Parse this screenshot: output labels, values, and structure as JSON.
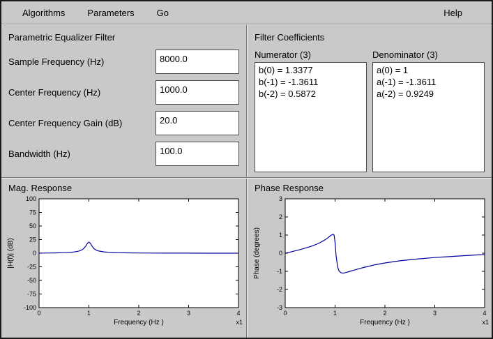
{
  "menu": {
    "items": [
      {
        "label": "Algorithms"
      },
      {
        "label": "Parameters"
      },
      {
        "label": "Go"
      },
      {
        "label": "Help"
      }
    ]
  },
  "filter_panel": {
    "title": "Parametric Equalizer Filter",
    "fields": [
      {
        "label": "Sample Frequency (Hz)",
        "value": "8000.0"
      },
      {
        "label": "Center Frequency (Hz)",
        "value": "1000.0"
      },
      {
        "label": "Center Frequency Gain (dB)",
        "value": "20.0"
      },
      {
        "label": "Bandwidth (Hz)",
        "value": "100.0"
      }
    ]
  },
  "coefficients_panel": {
    "title": "Filter Coefficients",
    "numerator": {
      "header": "Numerator (3)",
      "lines": [
        "b(0) = 1.3377",
        "b(-1) = -1.3611",
        "b(-2) = 0.5872"
      ]
    },
    "denominator": {
      "header": "Denominator (3)",
      "lines": [
        "a(0) = 1",
        "a(-1) = -1.3611",
        "a(-2) = 0.9249"
      ]
    }
  },
  "chart_data": [
    {
      "type": "line",
      "panel_title": "Mag. Response",
      "xlabel": "Frequency (Hz )",
      "ylabel": "|H(f)| (dB)",
      "x_multiplier": "x1",
      "xlim": [
        0,
        4
      ],
      "ylim": [
        -100,
        100
      ],
      "xticks": [
        0,
        1,
        2,
        3,
        4
      ],
      "yticks": [
        -100,
        -75,
        -50,
        -25,
        0,
        25,
        50,
        75,
        100
      ],
      "grid": false,
      "legend": false,
      "line_color": "#00009c",
      "x": [
        0,
        0.1,
        0.2,
        0.3,
        0.4,
        0.5,
        0.6,
        0.65,
        0.7,
        0.75,
        0.8,
        0.85,
        0.88,
        0.91,
        0.94,
        0.96,
        0.98,
        1.0,
        1.02,
        1.04,
        1.07,
        1.1,
        1.15,
        1.2,
        1.3,
        1.4,
        1.5,
        1.6,
        1.8,
        2.0,
        2.3,
        2.6,
        3.0,
        3.4,
        3.8,
        4.0
      ],
      "y": [
        0.2,
        0.3,
        0.4,
        0.55,
        0.75,
        1.0,
        1.5,
        1.8,
        2.3,
        3.0,
        4.0,
        5.8,
        7.5,
        10.0,
        13.5,
        16.5,
        19.0,
        20.4,
        19.0,
        16.5,
        12.0,
        8.5,
        5.5,
        4.0,
        2.4,
        1.7,
        1.2,
        0.9,
        0.6,
        0.4,
        0.25,
        0.15,
        0.1,
        0.05,
        0.02,
        0.0
      ]
    },
    {
      "type": "line",
      "panel_title": "Phase Response",
      "xlabel": "Frequency (Hz )",
      "ylabel": "Phase (degrees)",
      "x_multiplier": "x1",
      "xlim": [
        0,
        4
      ],
      "ylim": [
        -3,
        3
      ],
      "xticks": [
        0,
        1,
        2,
        3,
        4
      ],
      "yticks": [
        -3,
        -2,
        -1,
        0,
        1,
        2,
        3
      ],
      "grid": false,
      "legend": false,
      "line_color": "#00009c",
      "x": [
        0,
        0.1,
        0.2,
        0.3,
        0.4,
        0.5,
        0.6,
        0.65,
        0.7,
        0.75,
        0.8,
        0.85,
        0.88,
        0.91,
        0.94,
        0.96,
        0.98,
        1.0,
        1.02,
        1.05,
        1.08,
        1.12,
        1.16,
        1.2,
        1.3,
        1.4,
        1.5,
        1.6,
        1.8,
        2.0,
        2.3,
        2.6,
        3.0,
        3.4,
        3.8,
        4.0
      ],
      "y": [
        0.0,
        0.06,
        0.13,
        0.2,
        0.28,
        0.36,
        0.46,
        0.52,
        0.58,
        0.66,
        0.74,
        0.84,
        0.9,
        0.97,
        1.02,
        1.04,
        1.0,
        0.6,
        -0.1,
        -0.75,
        -0.98,
        -1.08,
        -1.1,
        -1.08,
        -1.0,
        -0.92,
        -0.84,
        -0.77,
        -0.64,
        -0.54,
        -0.42,
        -0.33,
        -0.24,
        -0.17,
        -0.1,
        -0.07
      ]
    }
  ]
}
